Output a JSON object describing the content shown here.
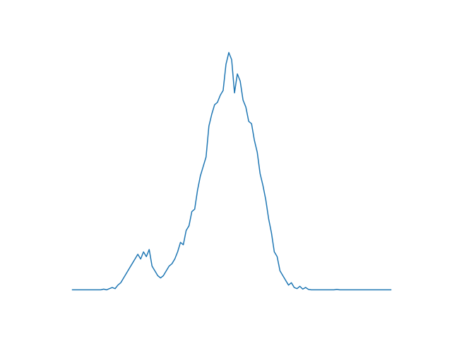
{
  "chart_data": {
    "type": "line",
    "color": "#1f77b4",
    "values": [
      0,
      0,
      0,
      0,
      0,
      0,
      0,
      0,
      0,
      0,
      0,
      0.3,
      0,
      0.5,
      1,
      0.5,
      2,
      3,
      5,
      7,
      9,
      11,
      13,
      15,
      13,
      16,
      14,
      17,
      10,
      8,
      6,
      5,
      6,
      8,
      10,
      11,
      13,
      16,
      20,
      19,
      25,
      27,
      33,
      34,
      42,
      48,
      52,
      56,
      69,
      74,
      78,
      79,
      82,
      84,
      95,
      100,
      97,
      83,
      91,
      88,
      80,
      77,
      71,
      70,
      63,
      58,
      49,
      44,
      38,
      30,
      24,
      16,
      14,
      8,
      6,
      4,
      2,
      3,
      1,
      0.5,
      1.5,
      0.3,
      1,
      0.2,
      0,
      0,
      0,
      0,
      0,
      0,
      0,
      0,
      0,
      0.2,
      0,
      0,
      0,
      0,
      0,
      0,
      0,
      0,
      0,
      0,
      0,
      0,
      0,
      0,
      0,
      0,
      0,
      0,
      0
    ],
    "xlim": [
      -5.6,
      117.6
    ],
    "ylim": [
      -5,
      105
    ]
  }
}
